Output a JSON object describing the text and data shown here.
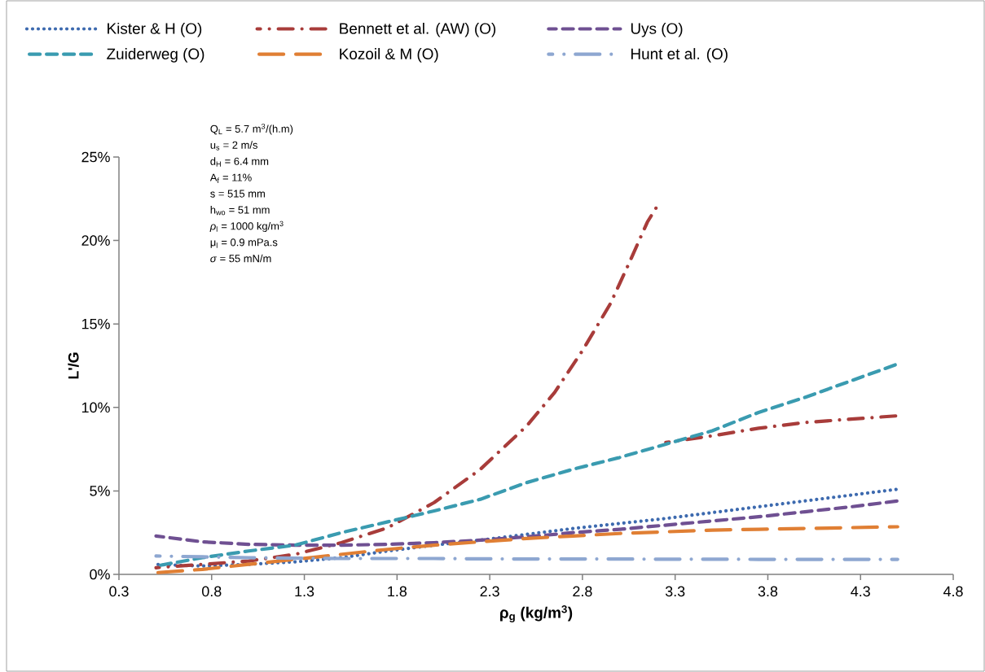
{
  "chart_data": {
    "type": "line",
    "xlabel": "**ρ$_{g}$ (kg/m$^{3}$)**",
    "ylabel": "L'/G",
    "xlim": [
      0.3,
      4.8
    ],
    "xticks": [
      0.3,
      0.8,
      1.3,
      1.8,
      2.3,
      2.8,
      3.3,
      3.8,
      4.3,
      4.8
    ],
    "ylim": [
      0,
      25
    ],
    "yticks": [
      {
        "value": 0,
        "label": "0%"
      },
      {
        "value": 5,
        "label": "5%"
      },
      {
        "value": 10,
        "label": "10%"
      },
      {
        "value": 15,
        "label": "15%"
      },
      {
        "value": 20,
        "label": "20%"
      },
      {
        "value": 25,
        "label": "25%"
      }
    ],
    "legend": "top",
    "annotations": [
      "Q$_{L}$ = 5.7 m$^{3}$/(h.m)",
      "u$_{s}$ = 2 m/s",
      "d$_{H}$ = 6.4 mm",
      "A$_{f}$ = 11%",
      "s =  515 mm",
      "h$_{wo}$ = 51 mm",
      "*ρ*$_{l}$ =  1000 kg/m$^{3}$",
      "μ$_{l}$ = 0.9 mPa.s",
      "*σ* = 55 mN/m"
    ],
    "x": [
      0.5,
      0.75,
      1.0,
      1.25,
      1.5,
      1.75,
      2.0,
      2.25,
      2.5,
      2.75,
      3.0,
      3.25,
      3.5,
      3.75,
      4.0,
      4.25,
      4.5
    ],
    "series": [
      {
        "name": "Kister & H (O)",
        "color": "#3d6aaf",
        "line_style": "dotted",
        "values": [
          0.6,
          0.5,
          0.6,
          0.75,
          1.0,
          1.4,
          1.75,
          2.05,
          2.4,
          2.75,
          3.05,
          3.35,
          3.7,
          4.05,
          4.4,
          4.75,
          5.1
        ]
      },
      {
        "name": "Bennett et al. (AW) (O)",
        "color": "#a83c3a",
        "line_style": "dashdot",
        "x": [
          0.5,
          0.75,
          1.0,
          1.25,
          1.5,
          1.75,
          2.0,
          2.25,
          2.5,
          2.65,
          2.8,
          2.95,
          3.05,
          3.15,
          3.2,
          3.22,
          3.25,
          3.5,
          3.75,
          4.0,
          4.25,
          4.5
        ],
        "values": [
          0.4,
          0.6,
          0.8,
          1.2,
          1.9,
          2.8,
          4.3,
          6.3,
          8.9,
          10.9,
          13.4,
          16.2,
          18.6,
          21.1,
          22.0,
          null,
          7.9,
          8.3,
          8.75,
          9.1,
          9.3,
          9.5
        ]
      },
      {
        "name": "Uys (O)",
        "color": "#6f5092",
        "line_style": "dashed",
        "values": [
          2.3,
          1.95,
          1.8,
          1.75,
          1.75,
          1.8,
          1.9,
          2.05,
          2.25,
          2.5,
          2.7,
          2.95,
          3.2,
          3.45,
          3.75,
          4.05,
          4.4
        ]
      },
      {
        "name": "Zuiderweg (O)",
        "color": "#3a9bb0",
        "line_style": "dashed",
        "values": [
          0.5,
          1.0,
          1.4,
          1.75,
          2.5,
          3.15,
          3.8,
          4.5,
          5.5,
          6.3,
          7.0,
          7.8,
          8.6,
          9.7,
          10.6,
          11.6,
          12.6
        ]
      },
      {
        "name": "Kozoil & M (O)",
        "color": "#e07f34",
        "line_style": "longdash",
        "values": [
          0.1,
          0.3,
          0.6,
          0.9,
          1.2,
          1.5,
          1.75,
          1.95,
          2.15,
          2.3,
          2.45,
          2.55,
          2.65,
          2.7,
          2.75,
          2.8,
          2.85
        ]
      },
      {
        "name": "Hunt et al. (O)",
        "color": "#8ea7d1",
        "line_style": "longdashdot",
        "values": [
          1.1,
          1.05,
          1.0,
          0.97,
          0.95,
          0.95,
          0.95,
          0.93,
          0.92,
          0.92,
          0.92,
          0.91,
          0.91,
          0.9,
          0.9,
          0.9,
          0.9
        ]
      }
    ]
  }
}
